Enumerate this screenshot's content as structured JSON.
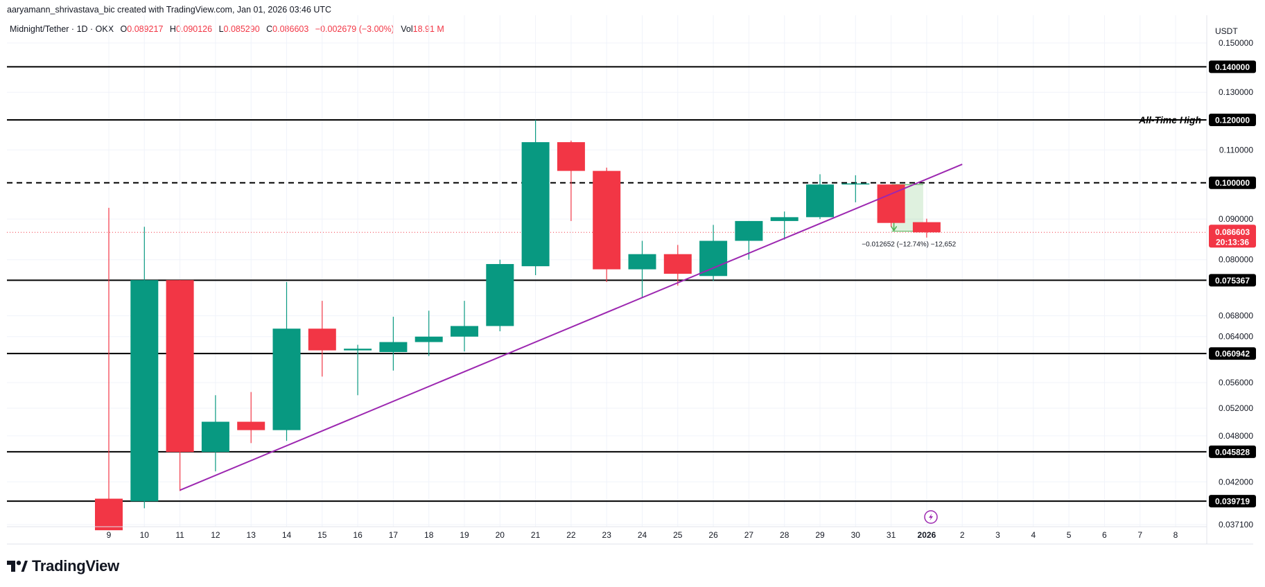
{
  "header": {
    "credit": "aaryamann_shrivastava_bic created with TradingView.com, Jan 01, 2026 03:46 UTC"
  },
  "legend": {
    "symbol": "Midnight/Tether · 1D · OKX",
    "open_label": "O",
    "open": "0.089217",
    "high_label": "H",
    "high": "0.090126",
    "low_label": "L",
    "low": "0.085290",
    "close_label": "C",
    "close": "0.086603",
    "change": "−0.002679 (−3.00%)",
    "vol_label": "Vol",
    "vol": "18.91 M"
  },
  "axis": {
    "currency": "USDT"
  },
  "brand": {
    "name": "TradingView",
    "logo_icon": "tradingview-logo-icon"
  },
  "colors": {
    "up": "#089981",
    "down": "#f23645",
    "trend": "#9c27b0",
    "measure": "#4caf50"
  },
  "chart_data": {
    "type": "candlestick",
    "title": "",
    "xlabel": "",
    "ylabel": "",
    "ylim": [
      0.0365,
      0.155
    ],
    "x_ticks": [
      "9",
      "10",
      "11",
      "12",
      "13",
      "14",
      "15",
      "16",
      "17",
      "18",
      "19",
      "20",
      "21",
      "22",
      "23",
      "24",
      "25",
      "26",
      "27",
      "28",
      "29",
      "30",
      "31",
      "2026",
      "2",
      "3",
      "4",
      "5",
      "6",
      "7",
      "8"
    ],
    "y_ticks": [
      "0.150000",
      "0.130000",
      "0.110000",
      "0.090000",
      "0.080000",
      "0.068000",
      "0.064000",
      "0.056000",
      "0.052000",
      "0.048000",
      "0.042000",
      "0.037100"
    ],
    "candles": [
      {
        "x": "9",
        "o": 0.04,
        "h": 0.093,
        "l": 0.0365,
        "c": 0.0365
      },
      {
        "x": "10",
        "o": 0.0397,
        "h": 0.088,
        "l": 0.0389,
        "c": 0.0754
      },
      {
        "x": "11",
        "o": 0.0754,
        "h": 0.0754,
        "l": 0.0409,
        "c": 0.0458
      },
      {
        "x": "12",
        "o": 0.0458,
        "h": 0.054,
        "l": 0.0433,
        "c": 0.05
      },
      {
        "x": "13",
        "o": 0.05,
        "h": 0.0545,
        "l": 0.047,
        "c": 0.0488
      },
      {
        "x": "14",
        "o": 0.0488,
        "h": 0.075,
        "l": 0.0473,
        "c": 0.0655
      },
      {
        "x": "15",
        "o": 0.0655,
        "h": 0.071,
        "l": 0.057,
        "c": 0.0615
      },
      {
        "x": "16",
        "o": 0.0615,
        "h": 0.0625,
        "l": 0.054,
        "c": 0.0618
      },
      {
        "x": "17",
        "o": 0.0612,
        "h": 0.0678,
        "l": 0.058,
        "c": 0.063
      },
      {
        "x": "18",
        "o": 0.063,
        "h": 0.069,
        "l": 0.0605,
        "c": 0.064
      },
      {
        "x": "19",
        "o": 0.064,
        "h": 0.071,
        "l": 0.0613,
        "c": 0.066
      },
      {
        "x": "20",
        "o": 0.066,
        "h": 0.08,
        "l": 0.065,
        "c": 0.079
      },
      {
        "x": "21",
        "o": 0.0785,
        "h": 0.12,
        "l": 0.0765,
        "c": 0.1125
      },
      {
        "x": "22",
        "o": 0.1125,
        "h": 0.113,
        "l": 0.0895,
        "c": 0.1035
      },
      {
        "x": "23",
        "o": 0.1035,
        "h": 0.1045,
        "l": 0.075,
        "c": 0.0778
      },
      {
        "x": "24",
        "o": 0.0778,
        "h": 0.0845,
        "l": 0.0717,
        "c": 0.0813
      },
      {
        "x": "25",
        "o": 0.0813,
        "h": 0.0835,
        "l": 0.0742,
        "c": 0.0768
      },
      {
        "x": "26",
        "o": 0.0763,
        "h": 0.0885,
        "l": 0.0752,
        "c": 0.0845
      },
      {
        "x": "27",
        "o": 0.0845,
        "h": 0.0895,
        "l": 0.08,
        "c": 0.0895
      },
      {
        "x": "28",
        "o": 0.0895,
        "h": 0.092,
        "l": 0.0848,
        "c": 0.0905
      },
      {
        "x": "29",
        "o": 0.0905,
        "h": 0.1025,
        "l": 0.09,
        "c": 0.0995
      },
      {
        "x": "30",
        "o": 0.0995,
        "h": 0.1022,
        "l": 0.0945,
        "c": 0.0998
      },
      {
        "x": "31",
        "o": 0.0995,
        "h": 0.0995,
        "l": 0.088,
        "c": 0.089
      },
      {
        "x": "2026",
        "o": 0.0892,
        "h": 0.0901,
        "l": 0.0853,
        "c": 0.0866
      }
    ],
    "levels": [
      {
        "value": "0.140000",
        "style": "solid"
      },
      {
        "value": "0.120000",
        "style": "solid",
        "label": "All-Time High"
      },
      {
        "value": "0.100000",
        "style": "dashed"
      },
      {
        "value": "0.075367",
        "style": "solid"
      },
      {
        "value": "0.060942",
        "style": "solid"
      },
      {
        "value": "0.045828",
        "style": "solid"
      },
      {
        "value": "0.039719",
        "style": "solid"
      }
    ],
    "last_price": {
      "value": "0.086603",
      "countdown": "20:13:36"
    },
    "trendline": {
      "from": {
        "x": "11",
        "y": 0.041
      },
      "to": {
        "x": "2",
        "y": 0.1055
      }
    },
    "measure": {
      "x_from": "31",
      "x_to": "2026",
      "high": 0.0995,
      "low": 0.0869,
      "label": "−0.012652 (−12.74%) −12,652"
    }
  }
}
